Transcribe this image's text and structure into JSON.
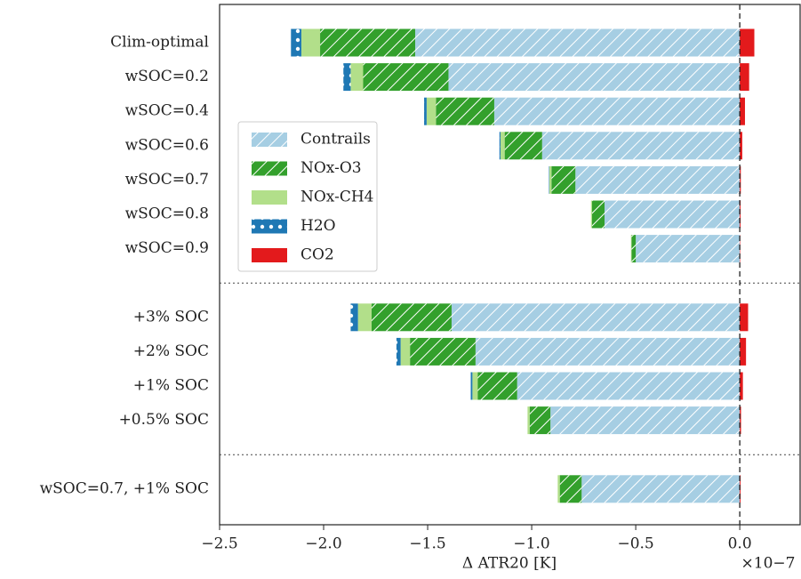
{
  "chart_data": {
    "type": "stacked-barh",
    "xlabel": "Δ ATR20 [K]",
    "x_offset_label": "×10−7",
    "categories": [
      "Clim-optimal",
      "wSOC=0.2",
      "wSOC=0.4",
      "wSOC=0.6",
      "wSOC=0.7",
      "wSOC=0.8",
      "wSOC=0.9",
      null,
      "+3% SOC",
      "+2% SOC",
      "+1% SOC",
      "+0.5% SOC",
      null,
      "wSOC=0.7, +1% SOC"
    ],
    "series": [
      {
        "name": "Contrails",
        "color": "#a6cee3",
        "hatch": "diagonal",
        "values": [
          -1.56,
          -1.4,
          -1.18,
          -0.95,
          -0.79,
          -0.65,
          -0.5,
          null,
          -1.385,
          -1.27,
          -1.07,
          -0.91,
          null,
          -0.76
        ]
      },
      {
        "name": "NOx-O3",
        "color": "#33a02c",
        "hatch": "diagonal",
        "values": [
          -0.457,
          -0.41,
          -0.28,
          -0.18,
          -0.115,
          -0.06,
          -0.02,
          null,
          -0.385,
          -0.315,
          -0.19,
          -0.1,
          null,
          -0.105
        ]
      },
      {
        "name": "NOx-CH4",
        "color": "#b2df8a",
        "hatch": null,
        "values": [
          -0.09,
          -0.06,
          -0.045,
          -0.02,
          -0.01,
          -0.005,
          -0.003,
          null,
          -0.065,
          -0.045,
          -0.025,
          -0.01,
          null,
          -0.01
        ]
      },
      {
        "name": "H2O",
        "color": "#1f78b4",
        "hatch": "dots",
        "values": [
          -0.05,
          -0.035,
          -0.012,
          -0.005,
          -0.002,
          0,
          0,
          null,
          -0.035,
          -0.02,
          -0.008,
          0,
          null,
          0
        ]
      },
      {
        "name": "CO2",
        "color": "#e31a1c",
        "hatch": null,
        "values": [
          0.07,
          0.045,
          0.025,
          0.012,
          0.005,
          0.004,
          0.002,
          null,
          0.04,
          0.03,
          0.015,
          0.006,
          null,
          0.004
        ]
      }
    ],
    "xlim": [
      -2.5,
      0.29
    ],
    "xticks": [
      {
        "value": -2.5,
        "label": "−2.5"
      },
      {
        "value": -2.0,
        "label": "−2.0"
      },
      {
        "value": -1.5,
        "label": "−1.5"
      },
      {
        "value": -1.0,
        "label": "−1.0"
      },
      {
        "value": -0.5,
        "label": "−0.5"
      },
      {
        "value": 0.0,
        "label": "0.0"
      }
    ],
    "legend": "upper left"
  }
}
